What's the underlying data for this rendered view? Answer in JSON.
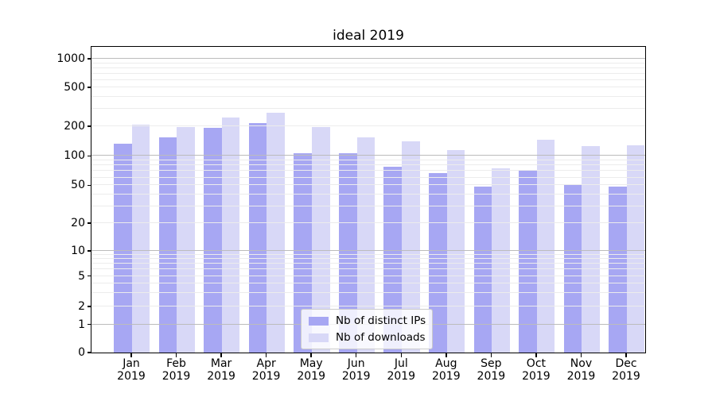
{
  "figure": {
    "background": "#ffffff"
  },
  "chart_data": {
    "type": "bar",
    "title": "ideal 2019",
    "categories": [
      "Jan",
      "Feb",
      "Mar",
      "Apr",
      "May",
      "Jun",
      "Jul",
      "Aug",
      "Sep",
      "Oct",
      "Nov",
      "Dec"
    ],
    "category_year_line": "2019",
    "series": [
      {
        "name": "Nb of distinct IPs",
        "color": "#a7a7f3",
        "values": [
          134,
          154,
          193,
          215,
          106,
          107,
          78,
          67,
          49,
          71,
          51,
          49
        ]
      },
      {
        "name": "Nb of downloads",
        "color": "#d8d8f7",
        "values": [
          208,
          195,
          245,
          276,
          196,
          155,
          140,
          114,
          75,
          145,
          126,
          127
        ]
      }
    ],
    "xlabel": "",
    "ylabel": "",
    "ylim": [
      0,
      1200
    ],
    "grid": true,
    "legend_position": "lower center",
    "y_axis": {
      "scale": "symlog",
      "major_ticks": [
        0,
        1,
        2,
        5,
        10,
        20,
        50,
        100,
        200,
        500,
        1000
      ],
      "major_grid_values": [
        1,
        10,
        100,
        1000
      ],
      "minor_grid_values": [
        2,
        3,
        4,
        5,
        6,
        7,
        8,
        9,
        20,
        30,
        40,
        50,
        60,
        70,
        80,
        90,
        200,
        300,
        400,
        500,
        600,
        700,
        800,
        900
      ],
      "scale_anchors": {
        "0": 0.0,
        "1": 0.0917,
        "2": 0.1506,
        "5": 0.2501,
        "10": 0.3325,
        "20": 0.4234,
        "50": 0.5468,
        "100": 0.6434,
        "200": 0.7403,
        "500": 0.8675,
        "1000": 0.961
      }
    },
    "colors": {
      "grid_minor": "#ececec",
      "grid_major": "#bcbcbc",
      "spine": "#000000"
    }
  }
}
